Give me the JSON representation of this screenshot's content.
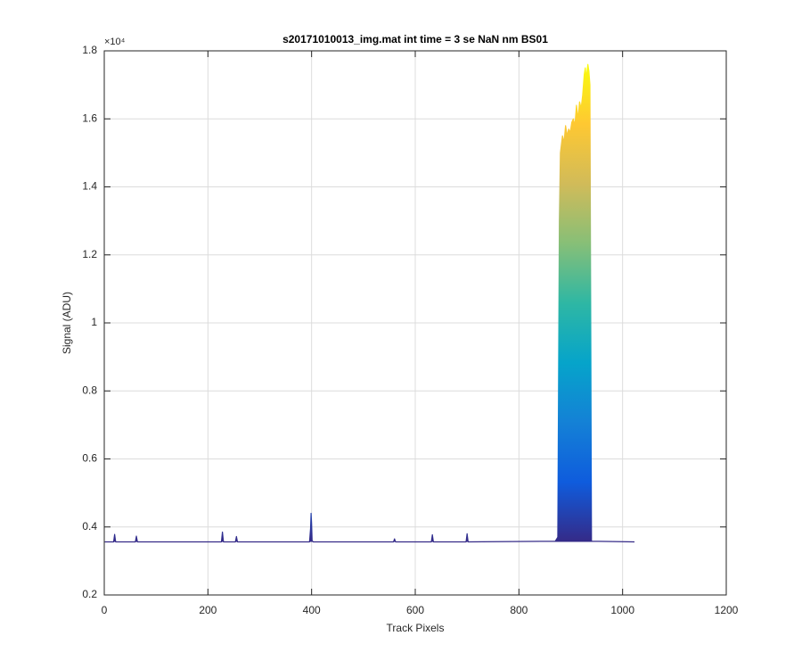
{
  "chart_data": {
    "type": "line",
    "title": "s20171010013_img.mat int time = 3 se  NaN nm BS01",
    "x_label": "Track Pixels",
    "y_label": "Signal (ADU)",
    "y_multiplier": "×10⁴",
    "xlim": [
      0,
      1200
    ],
    "xticks": [
      0,
      200,
      400,
      600,
      800,
      1000,
      1200
    ],
    "ylim": [
      0.2,
      1.8
    ],
    "yticks": [
      0.2,
      0.4,
      0.6,
      0.8,
      1,
      1.2,
      1.4,
      1.6,
      1.8
    ],
    "grid": true,
    "colormap": [
      "#352a87",
      "#0f5cdd",
      "#1481d6",
      "#06a4ca",
      "#2eb7a4",
      "#87bf77",
      "#d1bb59",
      "#fec832",
      "#f9fb0e"
    ],
    "series": [
      {
        "name": "Signal",
        "x": [
          1,
          18,
          20,
          22,
          60,
          62,
          64,
          226,
          228,
          230,
          253,
          255,
          257,
          396,
          398,
          399,
          400,
          401,
          403,
          558,
          560,
          562,
          631,
          633,
          635,
          698,
          700,
          702,
          870,
          875,
          878,
          880,
          884,
          887,
          890,
          893,
          896,
          899,
          902,
          905,
          908,
          911,
          914,
          917,
          920,
          923,
          926,
          928,
          930,
          933,
          935,
          937,
          940,
          1023
        ],
        "values": [
          0.356,
          0.356,
          0.378,
          0.356,
          0.356,
          0.373,
          0.356,
          0.356,
          0.385,
          0.356,
          0.356,
          0.372,
          0.356,
          0.356,
          0.395,
          0.44,
          0.41,
          0.36,
          0.356,
          0.356,
          0.365,
          0.356,
          0.356,
          0.377,
          0.356,
          0.356,
          0.38,
          0.356,
          0.358,
          0.37,
          1.3,
          1.5,
          1.55,
          1.53,
          1.58,
          1.55,
          1.57,
          1.56,
          1.59,
          1.6,
          1.58,
          1.64,
          1.6,
          1.65,
          1.63,
          1.67,
          1.73,
          1.75,
          1.72,
          1.76,
          1.74,
          1.7,
          0.358,
          0.356
        ]
      }
    ]
  }
}
